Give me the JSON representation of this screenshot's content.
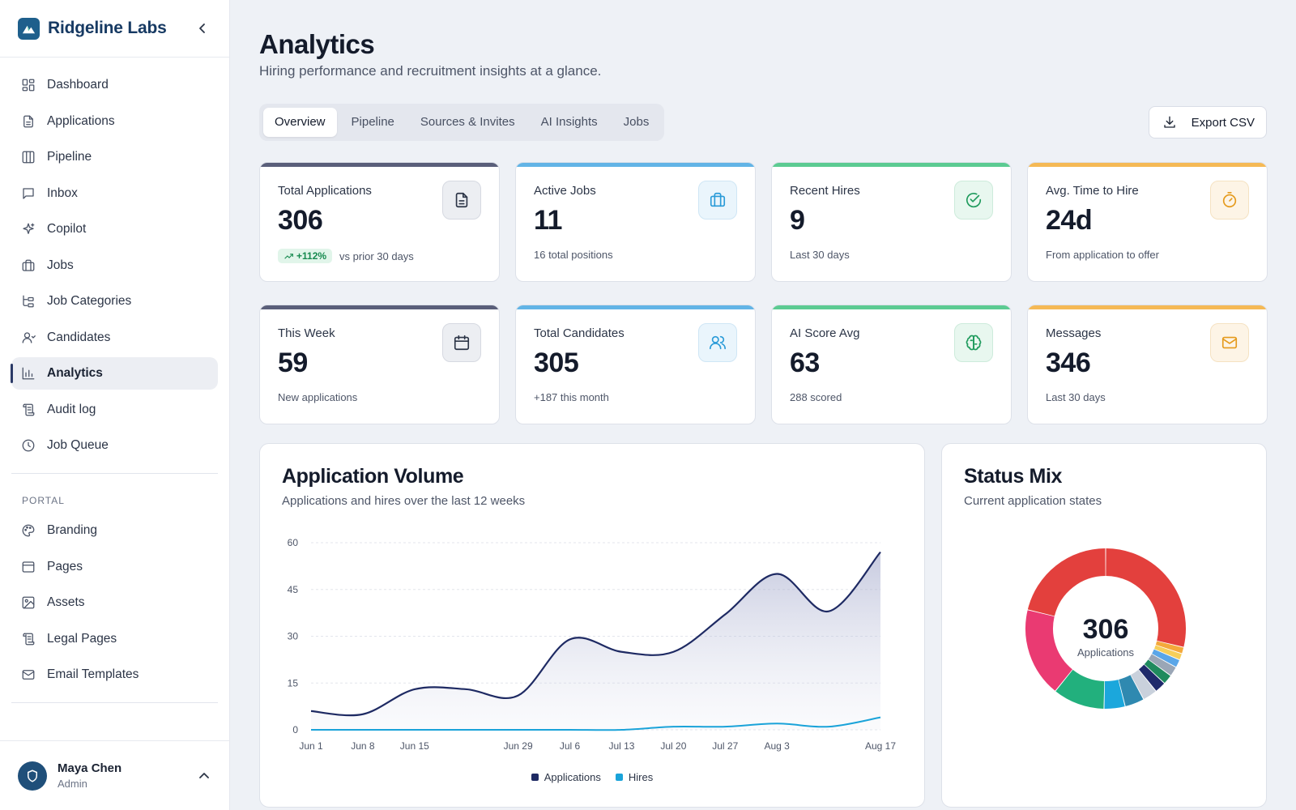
{
  "brand": {
    "name": "Ridgeline Labs"
  },
  "sidebar": {
    "items": [
      {
        "label": "Dashboard",
        "icon": "dashboard-icon"
      },
      {
        "label": "Applications",
        "icon": "document-icon"
      },
      {
        "label": "Pipeline",
        "icon": "columns-icon"
      },
      {
        "label": "Inbox",
        "icon": "message-icon"
      },
      {
        "label": "Copilot",
        "icon": "sparkles-icon"
      },
      {
        "label": "Jobs",
        "icon": "briefcase-icon"
      },
      {
        "label": "Job Categories",
        "icon": "tree-icon"
      },
      {
        "label": "Candidates",
        "icon": "user-icon"
      },
      {
        "label": "Analytics",
        "icon": "bar-chart-icon",
        "active": true
      },
      {
        "label": "Audit log",
        "icon": "scroll-icon"
      },
      {
        "label": "Job Queue",
        "icon": "clock-icon"
      }
    ],
    "portal_label": "PORTAL",
    "portal_items": [
      {
        "label": "Branding",
        "icon": "palette-icon"
      },
      {
        "label": "Pages",
        "icon": "page-icon"
      },
      {
        "label": "Assets",
        "icon": "image-icon"
      },
      {
        "label": "Legal Pages",
        "icon": "scroll-icon"
      },
      {
        "label": "Email Templates",
        "icon": "mail-icon"
      }
    ]
  },
  "user": {
    "name": "Maya Chen",
    "role": "Admin"
  },
  "header": {
    "title": "Analytics",
    "subtitle": "Hiring performance and recruitment insights at a glance."
  },
  "tabs": [
    {
      "label": "Overview",
      "active": true
    },
    {
      "label": "Pipeline"
    },
    {
      "label": "Sources & Invites"
    },
    {
      "label": "AI Insights"
    },
    {
      "label": "Jobs"
    }
  ],
  "export_label": "Export CSV",
  "stats": [
    {
      "label": "Total Applications",
      "value": "306",
      "badge": "+112%",
      "sub": "vs prior 30 days",
      "color": "#5a5f7a",
      "icon": "document-icon"
    },
    {
      "label": "Active Jobs",
      "value": "11",
      "sub": "16 total positions",
      "color": "#62b4e6",
      "icon": "briefcase-icon"
    },
    {
      "label": "Recent Hires",
      "value": "9",
      "sub": "Last 30 days",
      "color": "#5ccb92",
      "icon": "check-circle-icon"
    },
    {
      "label": "Avg. Time to Hire",
      "value": "24d",
      "sub": "From application to offer",
      "color": "#f5b955",
      "icon": "timer-icon"
    },
    {
      "label": "This Week",
      "value": "59",
      "sub": "New applications",
      "color": "#5a5f7a",
      "icon": "calendar-icon"
    },
    {
      "label": "Total Candidates",
      "value": "305",
      "sub": "+187 this month",
      "color": "#62b4e6",
      "icon": "users-icon"
    },
    {
      "label": "AI Score Avg",
      "value": "63",
      "sub": "288 scored",
      "color": "#5ccb92",
      "icon": "brain-icon"
    },
    {
      "label": "Messages",
      "value": "346",
      "sub": "Last 30 days",
      "color": "#f5b955",
      "icon": "mail-icon"
    }
  ],
  "volume": {
    "title": "Application Volume",
    "subtitle": "Applications and hires over the last 12 weeks"
  },
  "status": {
    "title": "Status Mix",
    "subtitle": "Current application states",
    "center_value": "306",
    "center_label": "Applications"
  },
  "chart_data": [
    {
      "type": "area",
      "title": "Application Volume",
      "subtitle": "Applications and hires over the last 12 weeks",
      "x": [
        "Jun 1",
        "Jun 8",
        "Jun 15",
        "Jun 22",
        "Jun 29",
        "Jul 6",
        "Jul 13",
        "Jul 20",
        "Jul 27",
        "Aug 3",
        "Aug 10",
        "Aug 17"
      ],
      "xticks": [
        "Jun 1",
        "Jun 8",
        "Jun 15",
        "Jun 29",
        "Jul 6",
        "Jul 13",
        "Jul 20",
        "Jul 27",
        "Aug 3",
        "Aug 17"
      ],
      "series": [
        {
          "name": "Applications",
          "values": [
            6,
            5,
            13,
            13,
            11,
            29,
            25,
            25,
            37,
            50,
            38,
            57
          ],
          "color": "#1e2a63"
        },
        {
          "name": "Hires",
          "values": [
            0,
            0,
            0,
            0,
            0,
            0,
            0,
            1,
            1,
            2,
            1,
            4
          ],
          "color": "#1aa3d9"
        }
      ],
      "ylim": [
        0,
        60
      ],
      "yticks": [
        0,
        15,
        30,
        45,
        60
      ],
      "grid": true,
      "legend": "bottom-center"
    },
    {
      "type": "pie",
      "title": "Status Mix",
      "subtitle": "Current application states",
      "values": [
        88,
        4,
        4,
        5,
        6,
        6,
        7,
        9,
        12,
        13,
        32,
        55,
        65
      ],
      "colors": [
        "#e3403d",
        "#f4a93b",
        "#f6cf5a",
        "#5aa6e8",
        "#9aa6b6",
        "#1f8a5e",
        "#1f2a6b",
        "#c9d1dc",
        "#2f89b0",
        "#1ba7dc",
        "#22b07d",
        "#ea3a72",
        "#e3403d"
      ],
      "total_label": "306"
    }
  ]
}
